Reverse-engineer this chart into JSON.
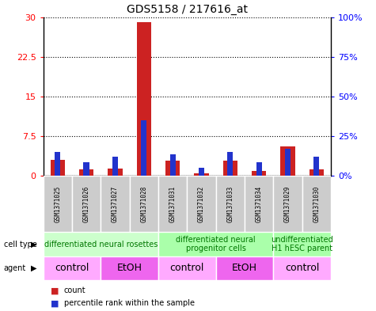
{
  "title": "GDS5158 / 217616_at",
  "samples": [
    "GSM1371025",
    "GSM1371026",
    "GSM1371027",
    "GSM1371028",
    "GSM1371031",
    "GSM1371032",
    "GSM1371033",
    "GSM1371034",
    "GSM1371029",
    "GSM1371030"
  ],
  "count_values": [
    3.0,
    1.2,
    1.3,
    29.0,
    2.8,
    0.5,
    2.8,
    0.9,
    5.5,
    1.2
  ],
  "percentile_values": [
    15.0,
    8.5,
    12.0,
    35.0,
    13.5,
    5.0,
    15.0,
    8.5,
    17.0,
    12.0
  ],
  "ylim_left": [
    0,
    30
  ],
  "ylim_right": [
    0,
    100
  ],
  "yticks_left": [
    0,
    7.5,
    15,
    22.5,
    30
  ],
  "yticks_right": [
    0,
    25,
    50,
    75,
    100
  ],
  "bar_color_red": "#cc2222",
  "bar_color_blue": "#2233cc",
  "cell_type_groups": [
    {
      "label": "differentiated neural rosettes",
      "start": 0,
      "end": 4,
      "color": "#ccffcc"
    },
    {
      "label": "differentiated neural\nprogenitor cells",
      "start": 4,
      "end": 8,
      "color": "#aaffaa"
    },
    {
      "label": "undifferentiated\nH1 hESC parent",
      "start": 8,
      "end": 10,
      "color": "#aaffaa"
    }
  ],
  "agent_groups": [
    {
      "label": "control",
      "start": 0,
      "end": 2,
      "color": "#ffaaff"
    },
    {
      "label": "EtOH",
      "start": 2,
      "end": 4,
      "color": "#ee66ee"
    },
    {
      "label": "control",
      "start": 4,
      "end": 6,
      "color": "#ffaaff"
    },
    {
      "label": "EtOH",
      "start": 6,
      "end": 8,
      "color": "#ee66ee"
    },
    {
      "label": "control",
      "start": 8,
      "end": 10,
      "color": "#ffaaff"
    }
  ],
  "sample_bg_color": "#cccccc",
  "legend_count_color": "#cc2222",
  "legend_pct_color": "#2233cc",
  "cell_type_label_fontsize": 7,
  "agent_label_fontsize": 9
}
